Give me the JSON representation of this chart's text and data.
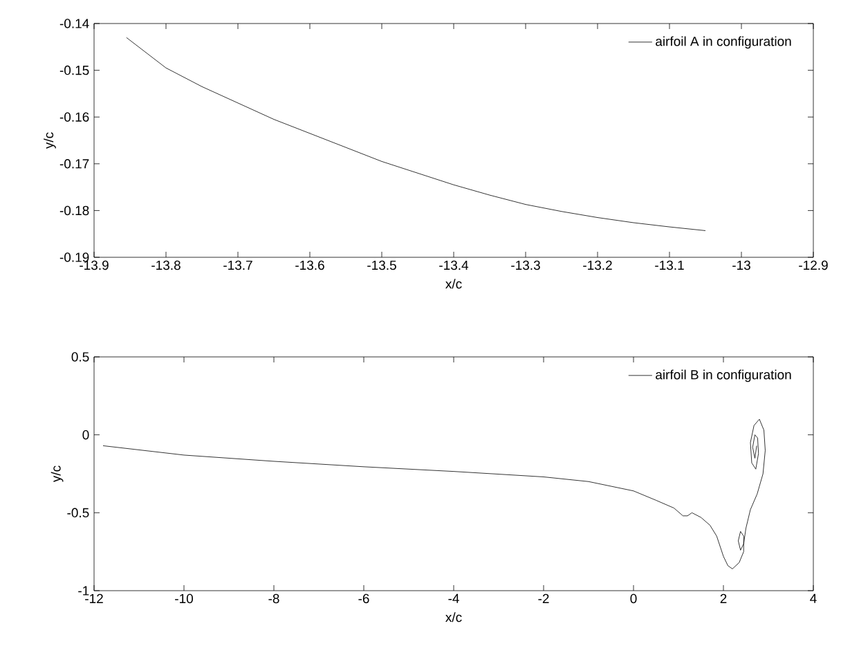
{
  "chart_data": [
    {
      "type": "line",
      "xlabel": "x/c",
      "ylabel": "y/c",
      "legend": "top right",
      "xlim": [
        -13.9,
        -12.9
      ],
      "ylim": [
        -0.19,
        -0.14
      ],
      "xticks": [
        -13.9,
        -13.8,
        -13.7,
        -13.6,
        -13.5,
        -13.4,
        -13.3,
        -13.2,
        -13.1,
        -13,
        -12.9
      ],
      "yticks": [
        -0.19,
        -0.18,
        -0.17,
        -0.16,
        -0.15,
        -0.14
      ],
      "series": [
        {
          "name": "airfoil A in configuration",
          "color": "#000000",
          "x": [
            -13.855,
            -13.8,
            -13.75,
            -13.7,
            -13.65,
            -13.6,
            -13.55,
            -13.5,
            -13.45,
            -13.4,
            -13.35,
            -13.3,
            -13.25,
            -13.2,
            -13.15,
            -13.1,
            -13.05
          ],
          "values": [
            -0.143,
            -0.1495,
            -0.1535,
            -0.157,
            -0.1605,
            -0.1635,
            -0.1665,
            -0.1695,
            -0.172,
            -0.1745,
            -0.1767,
            -0.1787,
            -0.1802,
            -0.1815,
            -0.1826,
            -0.1835,
            -0.1843
          ]
        }
      ]
    },
    {
      "type": "line",
      "xlabel": "x/c",
      "ylabel": "y/c",
      "legend": "top right",
      "xlim": [
        -12,
        4
      ],
      "ylim": [
        -1,
        0.5
      ],
      "xticks": [
        -12,
        -10,
        -8,
        -6,
        -4,
        -2,
        0,
        2,
        4
      ],
      "yticks": [
        -1,
        -0.5,
        0,
        0.5
      ],
      "series": [
        {
          "name": "airfoil B in configuration",
          "color": "#000000",
          "x": [
            -11.8,
            -10,
            -8,
            -6,
            -4,
            -2,
            -1,
            0,
            0.5,
            0.9,
            1.1,
            1.2,
            1.3,
            1.5,
            1.7,
            1.85,
            2.0,
            2.1,
            2.2,
            2.35,
            2.45,
            2.45,
            2.38,
            2.33,
            2.38,
            2.45,
            2.5,
            2.6,
            2.75,
            2.88,
            2.93,
            2.9,
            2.8,
            2.68,
            2.6,
            2.63,
            2.72,
            2.78,
            2.76,
            2.7,
            2.65,
            2.7,
            2.74
          ],
          "values": [
            -0.07,
            -0.13,
            -0.17,
            -0.205,
            -0.235,
            -0.27,
            -0.3,
            -0.36,
            -0.42,
            -0.47,
            -0.52,
            -0.52,
            -0.5,
            -0.53,
            -0.58,
            -0.65,
            -0.78,
            -0.84,
            -0.86,
            -0.82,
            -0.75,
            -0.65,
            -0.62,
            -0.68,
            -0.74,
            -0.7,
            -0.6,
            -0.48,
            -0.38,
            -0.25,
            -0.1,
            0.03,
            0.1,
            0.06,
            -0.05,
            -0.18,
            -0.22,
            -0.12,
            -0.02,
            0.0,
            -0.08,
            -0.15,
            -0.07
          ]
        }
      ]
    }
  ]
}
